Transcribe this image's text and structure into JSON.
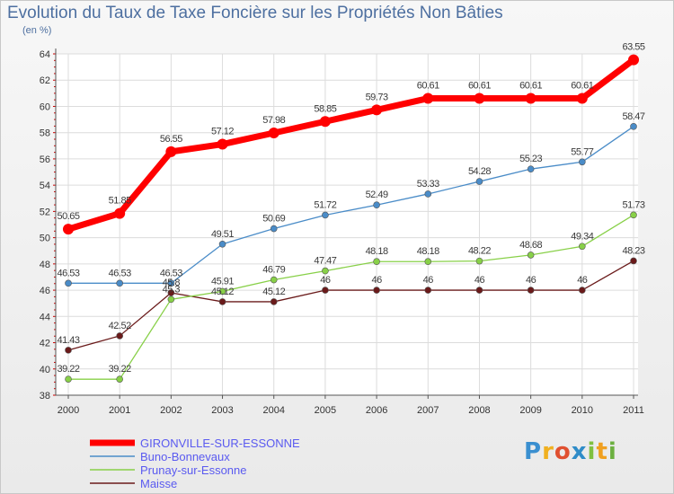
{
  "title": "Evolution du Taux de Taxe Foncière sur les Propriétés Non Bâties",
  "unit_label": "(en %)",
  "logo_text": "Proxiti",
  "chart_data": {
    "type": "line",
    "title": "Evolution du Taux de Taxe Foncière sur les Propriétés Non Bâties",
    "ylabel": "(en %)",
    "xlabel": "",
    "ylim": [
      38,
      64
    ],
    "yticks": [
      38,
      40,
      42,
      44,
      46,
      48,
      50,
      52,
      54,
      56,
      58,
      60,
      62,
      64
    ],
    "categories": [
      "2000",
      "2001",
      "2002",
      "2003",
      "2004",
      "2005",
      "2006",
      "2007",
      "2008",
      "2009",
      "2010",
      "2011"
    ],
    "legend_position": "bottom-left",
    "series": [
      {
        "name": "GIRONVILLE-SUR-ESSONNE",
        "color": "#ff0000",
        "values": [
          50.65,
          51.85,
          56.55,
          57.12,
          57.98,
          58.85,
          59.73,
          60.61,
          60.61,
          60.61,
          60.61,
          63.55
        ],
        "labels": [
          "50.65",
          "51.85",
          "56.55",
          "57.12",
          "57.98",
          "58.85",
          "59.73",
          "60.61",
          "60.61",
          "60.61",
          "60.61",
          "63.55"
        ]
      },
      {
        "name": "Buno-Bonnevaux",
        "color": "#4a8cc8",
        "values": [
          46.53,
          46.53,
          46.53,
          49.51,
          50.69,
          51.72,
          52.49,
          53.33,
          54.28,
          55.23,
          55.77,
          58.47
        ],
        "labels": [
          "46.53",
          "46.53",
          "46.53",
          "49.51",
          "50.69",
          "51.72",
          "52.49",
          "53.33",
          "54.28",
          "55.23",
          "55.77",
          "58.47"
        ]
      },
      {
        "name": "Prunay-sur-Essonne",
        "color": "#88d048",
        "values": [
          39.22,
          39.22,
          45.3,
          45.91,
          46.79,
          47.47,
          48.18,
          48.18,
          48.22,
          48.68,
          49.34,
          51.73
        ],
        "labels": [
          "39.22",
          "39.22",
          "45.3",
          "45.91",
          "46.79",
          "47.47",
          "48.18",
          "48.18",
          "48.22",
          "48.68",
          "49.34",
          "51.73"
        ]
      },
      {
        "name": "Maisse",
        "color": "#6a1a1a",
        "values": [
          41.43,
          42.52,
          45.8,
          45.12,
          45.12,
          46,
          46,
          46,
          46,
          46,
          46,
          48.23
        ],
        "labels": [
          "41.43",
          "42.52",
          "45.8",
          "45.12",
          "45.12",
          "46",
          "46",
          "46",
          "46",
          "46",
          "46",
          "48.23"
        ]
      }
    ]
  }
}
